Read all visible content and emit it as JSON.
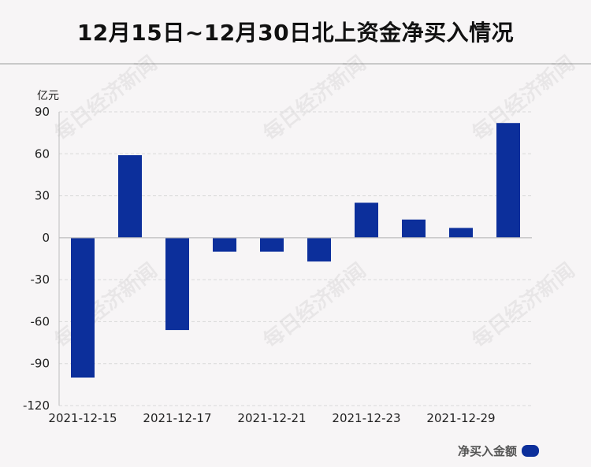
{
  "title": "12月15日~12月30日北上资金净买入情况",
  "watermark": "每日经济新闻",
  "legend": {
    "label": "净买入金额",
    "color": "#0c2f9b"
  },
  "chart_data": {
    "type": "bar",
    "unit_label": "亿元",
    "ylim": [
      -120,
      90
    ],
    "yticks": [
      90,
      60,
      30,
      0,
      -30,
      -60,
      -90,
      -120
    ],
    "x_tick_labels": [
      "2021-12-15",
      "2021-12-17",
      "2021-12-21",
      "2021-12-23",
      "2021-12-29"
    ],
    "x_tick_label_bar_index": [
      0,
      2,
      4,
      6,
      8
    ],
    "values": [
      -100,
      59,
      -66,
      -10,
      -10,
      -17,
      25,
      13,
      7,
      82
    ],
    "grid": true,
    "legend_position": "bottom-right",
    "bar_color": "#0c2f9b"
  }
}
